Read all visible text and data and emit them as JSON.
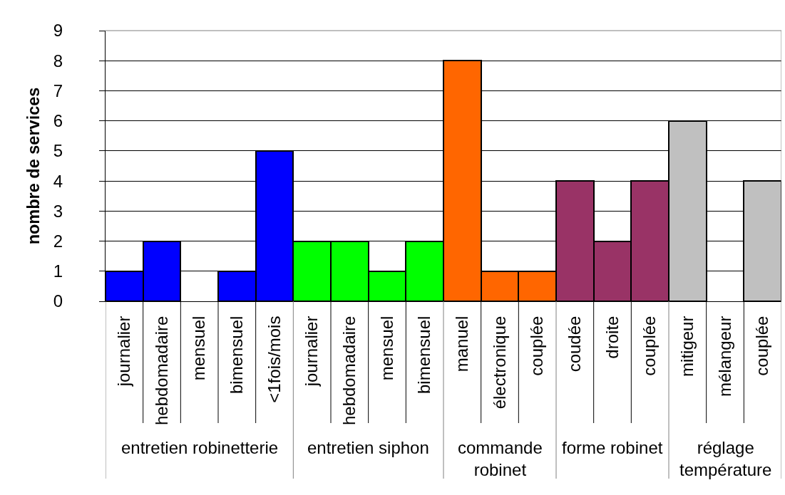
{
  "chart_data": {
    "type": "bar",
    "ylabel": "nombre de services",
    "categories": [
      "journalier",
      "hebdomadaire",
      "mensuel",
      "bimensuel",
      "<1fois/mois",
      "journalier",
      "hebdomadaire",
      "mensuel",
      "bimensuel",
      "manuel",
      "électronique",
      "couplée",
      "coudée",
      "droite",
      "couplée",
      "mitigeur",
      "mélangeur",
      "couplée"
    ],
    "series": [
      {
        "name": "entretien robinetterie",
        "color": "#0000ff",
        "values": [
          1,
          2,
          0,
          1,
          5,
          null,
          null,
          null,
          null,
          null,
          null,
          null,
          null,
          null,
          null,
          null,
          null,
          null
        ]
      },
      {
        "name": "entretien siphon",
        "color": "#00ff00",
        "values": [
          null,
          null,
          null,
          null,
          null,
          2,
          2,
          1,
          2,
          null,
          null,
          null,
          null,
          null,
          null,
          null,
          null,
          null
        ]
      },
      {
        "name": "commande robinet",
        "color": "#ff6600",
        "values": [
          null,
          null,
          null,
          null,
          null,
          null,
          null,
          null,
          null,
          8,
          1,
          1,
          null,
          null,
          null,
          null,
          null,
          null
        ]
      },
      {
        "name": "forme robinet",
        "color": "#993366",
        "values": [
          null,
          null,
          null,
          null,
          null,
          null,
          null,
          null,
          null,
          null,
          null,
          null,
          4,
          2,
          4,
          null,
          null,
          null
        ]
      },
      {
        "name": "réglage température",
        "color": "#c0c0c0",
        "values": [
          null,
          null,
          null,
          null,
          null,
          null,
          null,
          null,
          null,
          null,
          null,
          null,
          null,
          null,
          null,
          6,
          0,
          4
        ]
      }
    ],
    "ylim": [
      0,
      9
    ],
    "yticks": [
      0,
      1,
      2,
      3,
      4,
      5,
      6,
      7,
      8,
      9
    ],
    "grid": "y"
  }
}
